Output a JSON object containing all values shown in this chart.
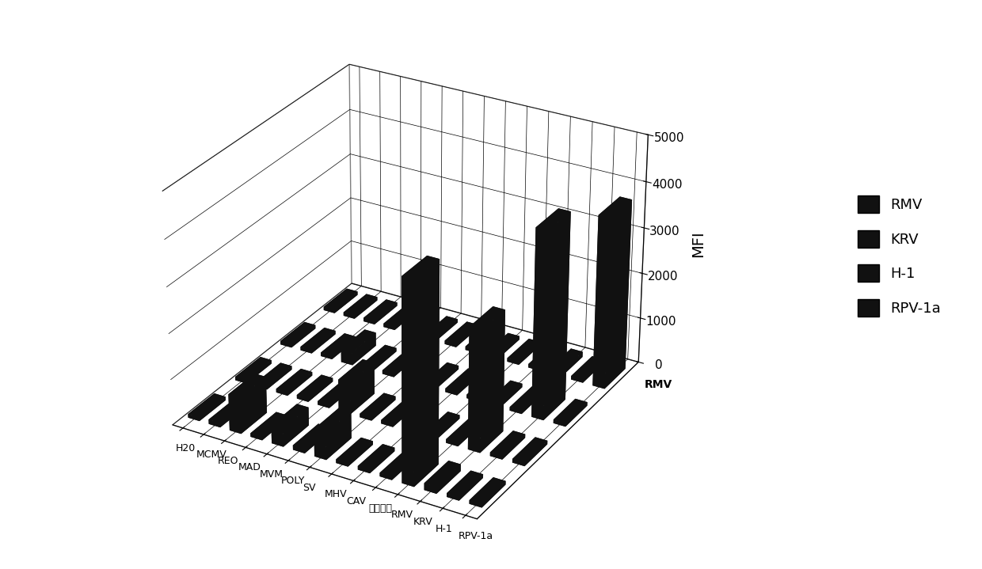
{
  "categories": [
    "H20",
    "MCMV",
    "REO",
    "MAD",
    "MVM",
    "POLY",
    "SV",
    "MHV",
    "CAV",
    "阴性组织",
    "RMV",
    "KRV",
    "H-1",
    "RPV-1a"
  ],
  "series": [
    "RMV",
    "KRV",
    "H-1",
    "RPV-1a"
  ],
  "data": {
    "RMV": [
      50,
      100,
      800,
      50,
      400,
      100,
      600,
      50,
      50,
      50,
      4350,
      150,
      50,
      50
    ],
    "KRV": [
      50,
      50,
      50,
      50,
      50,
      700,
      50,
      50,
      50,
      50,
      50,
      2650,
      50,
      50
    ],
    "H-1": [
      80,
      50,
      50,
      300,
      50,
      50,
      50,
      50,
      50,
      50,
      50,
      50,
      4100,
      50
    ],
    "RPV-1a": [
      50,
      50,
      50,
      50,
      50,
      50,
      50,
      50,
      50,
      50,
      50,
      120,
      50,
      3750
    ]
  },
  "zlabel": "MFI",
  "xaxis_end_label": "RMV",
  "zlim": [
    0,
    5000
  ],
  "zticks": [
    0,
    1000,
    2000,
    3000,
    4000,
    5000
  ],
  "bar_color": "#111111",
  "background_color": "#ffffff",
  "legend_entries": [
    "RMV",
    "KRV",
    "H-1",
    "RPV-1a"
  ],
  "figsize": [
    12.4,
    7.19
  ],
  "dpi": 100
}
